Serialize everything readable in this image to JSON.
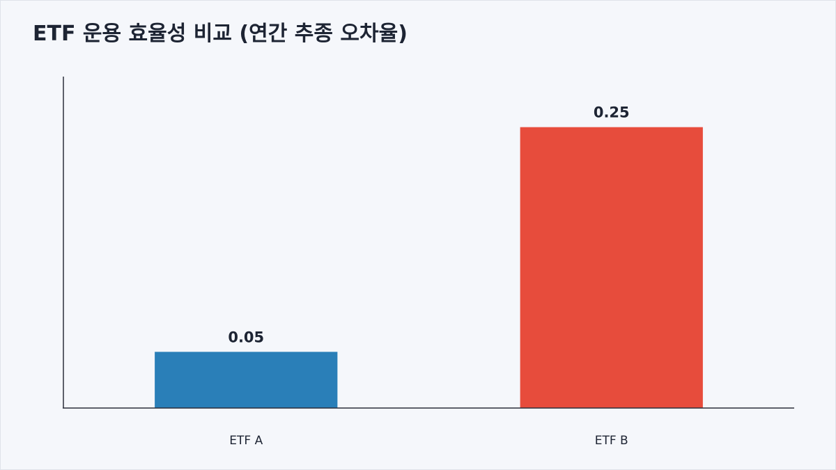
{
  "page": {
    "title": "ETF 운용 효율성 비교 (연간 추종 오차율)"
  },
  "chart_data": {
    "type": "bar",
    "title": "ETF 운용 효율성 비교 (연간 추종 오차율)",
    "xlabel": "",
    "ylabel": "",
    "categories": [
      "ETF A",
      "ETF B"
    ],
    "values": [
      0.05,
      0.25
    ],
    "value_labels": [
      "0.05",
      "0.25"
    ],
    "colors": [
      "#2a7fb8",
      "#e74c3c"
    ],
    "ylim": [
      0,
      0.295
    ],
    "grid": false,
    "legend": "none"
  }
}
